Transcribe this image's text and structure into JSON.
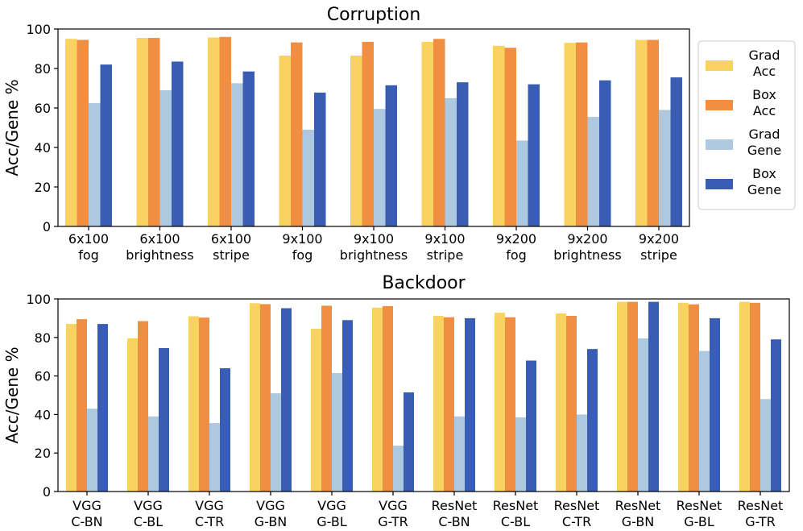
{
  "colors": {
    "grad_acc": "#FAD25F",
    "box_acc": "#F28E42",
    "grad_gene": "#AEC8E0",
    "box_gene": "#3A5DB4"
  },
  "legend": [
    {
      "line1": "Grad",
      "line2": "Acc",
      "color": "#FAD25F"
    },
    {
      "line1": "Box",
      "line2": "Acc",
      "color": "#F28E42"
    },
    {
      "line1": "Grad",
      "line2": "Gene",
      "color": "#AEC8E0"
    },
    {
      "line1": "Box",
      "line2": "Gene",
      "color": "#3A5DB4"
    }
  ],
  "chart_data": [
    {
      "type": "bar",
      "title": "Corruption",
      "ylabel": "Acc/Gene %",
      "ylim": [
        0,
        100
      ],
      "yticks": [
        0,
        20,
        40,
        60,
        80,
        100
      ],
      "categories": [
        [
          "6x100",
          "fog"
        ],
        [
          "6x100",
          "brightness"
        ],
        [
          "6x100",
          "stripe"
        ],
        [
          "9x100",
          "fog"
        ],
        [
          "9x100",
          "brightness"
        ],
        [
          "9x100",
          "stripe"
        ],
        [
          "9x200",
          "fog"
        ],
        [
          "9x200",
          "brightness"
        ],
        [
          "9x200",
          "stripe"
        ]
      ],
      "series": [
        {
          "name": "Grad Acc",
          "color": "#FAD25F",
          "values": [
            95,
            95.5,
            95.7,
            86.5,
            86.5,
            93.5,
            91.5,
            93,
            94.5
          ]
        },
        {
          "name": "Box Acc",
          "color": "#F28E42",
          "values": [
            94.5,
            95.5,
            96,
            93.2,
            93.5,
            95,
            90.5,
            93.2,
            94.5
          ]
        },
        {
          "name": "Grad Gene",
          "color": "#AEC8E0",
          "values": [
            62.5,
            69,
            72.5,
            49,
            59.5,
            65,
            43.5,
            55.5,
            59
          ]
        },
        {
          "name": "Box Gene",
          "color": "#3A5DB4",
          "values": [
            82,
            83.5,
            78.5,
            67.8,
            71.5,
            73,
            72,
            74,
            75.5
          ]
        }
      ]
    },
    {
      "type": "bar",
      "title": "Backdoor",
      "ylabel": "Acc/Gene %",
      "ylim": [
        0,
        100
      ],
      "yticks": [
        0,
        20,
        40,
        60,
        80,
        100
      ],
      "categories": [
        [
          "VGG",
          "C-BN"
        ],
        [
          "VGG",
          "C-BL"
        ],
        [
          "VGG",
          "C-TR"
        ],
        [
          "VGG",
          "G-BN"
        ],
        [
          "VGG",
          "G-BL"
        ],
        [
          "VGG",
          "G-TR"
        ],
        [
          "ResNet",
          "C-BN"
        ],
        [
          "ResNet",
          "C-BL"
        ],
        [
          "ResNet",
          "C-TR"
        ],
        [
          "ResNet",
          "G-BN"
        ],
        [
          "ResNet",
          "G-BL"
        ],
        [
          "ResNet",
          "G-TR"
        ]
      ],
      "series": [
        {
          "name": "Grad Acc",
          "color": "#FAD25F",
          "values": [
            87,
            79.5,
            91,
            97.8,
            84.5,
            95.5,
            91.2,
            92.8,
            92.5,
            98.5,
            98,
            98.5
          ]
        },
        {
          "name": "Box Acc",
          "color": "#F28E42",
          "values": [
            89.5,
            88.5,
            90.3,
            97.3,
            96.5,
            96.3,
            90.5,
            90.5,
            91.2,
            98.5,
            97.2,
            98
          ]
        },
        {
          "name": "Grad Gene",
          "color": "#AEC8E0",
          "values": [
            43,
            39,
            35.5,
            51,
            61.5,
            23.8,
            39,
            38.5,
            40,
            79.5,
            73,
            48
          ]
        },
        {
          "name": "Box Gene",
          "color": "#3A5DB4",
          "values": [
            87,
            74.5,
            64,
            95.2,
            89,
            51.5,
            90,
            68,
            74,
            98.5,
            90,
            79
          ]
        }
      ]
    }
  ]
}
